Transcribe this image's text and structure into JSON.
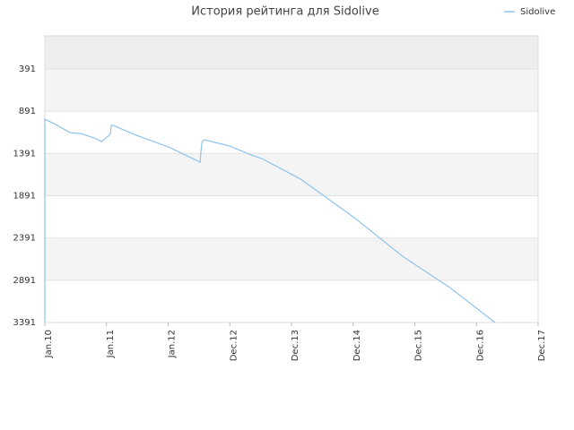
{
  "chart_data": {
    "type": "line",
    "title": "История рейтинга для Sidolive",
    "series": [
      {
        "name": "Sidolive",
        "color": "#8ec3ea",
        "x": [
          0,
          0,
          0.15,
          0.41,
          0.58,
          0.8,
          0.92,
          1.06,
          1.08,
          1.11,
          1.45,
          2.04,
          2.52,
          2.53,
          2.55,
          2.59,
          3.0,
          3.35,
          3.52,
          4.15,
          5.02,
          5.82,
          6.55,
          7.3
        ],
        "values": [
          3391,
          986,
          1039,
          1145,
          1155,
          1208,
          1251,
          1166,
          1060,
          1060,
          1166,
          1325,
          1495,
          1378,
          1251,
          1230,
          1304,
          1410,
          1452,
          1696,
          2152,
          2618,
          2968,
          3391
        ]
      }
    ],
    "xlim": [
      0,
      8
    ],
    "xticks": [
      {
        "value": 0,
        "label": "Jan.10"
      },
      {
        "value": 1,
        "label": "Jan.11"
      },
      {
        "value": 2,
        "label": "Jan.12"
      },
      {
        "value": 3,
        "label": "Dec.12"
      },
      {
        "value": 4,
        "label": "Dec.13"
      },
      {
        "value": 5,
        "label": "Dec.14"
      },
      {
        "value": 6,
        "label": "Dec.15"
      },
      {
        "value": 7,
        "label": "Dec.16"
      },
      {
        "value": 8,
        "label": "Dec.17"
      }
    ],
    "ylim": [
      3391,
      0
    ],
    "yticks": [
      391,
      891,
      1391,
      1891,
      2391,
      2891,
      3391
    ],
    "grid": true,
    "legend": "top-right"
  }
}
